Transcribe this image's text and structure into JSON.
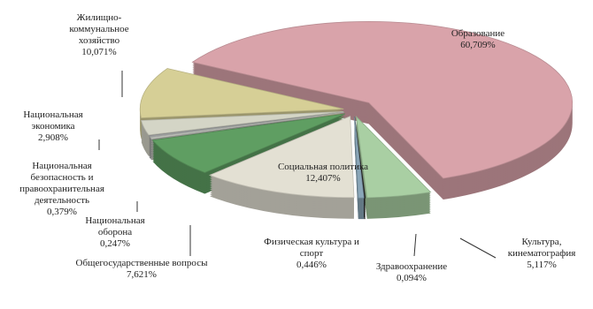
{
  "chart_data": {
    "type": "pie",
    "categories": [
      "Образование",
      "Культура, кинематография",
      "Здравоохранение",
      "Физическая культура и спорт",
      "Социальная политика",
      "Общегосударственные вопросы",
      "Национальная оборона",
      "Национальная безопасность и правоохранительная деятельность",
      "Национальная экономика",
      "Жилищно-коммунальное хозяйство"
    ],
    "values": [
      60.709,
      5.117,
      0.094,
      0.446,
      12.407,
      7.621,
      0.247,
      0.379,
      2.908,
      10.071
    ],
    "value_labels": [
      "60,709%",
      "5,117%",
      "0,094%",
      "0,446%",
      "12,407%",
      "7,621%",
      "0,247%",
      "0,379%",
      "2,908%",
      "10,071%"
    ],
    "colors": [
      "#d9a3aa",
      "#a9cfa3",
      "#2a2a2a",
      "#8aa6b8",
      "#e3e0d3",
      "#5f9e62",
      "#c9cbc4",
      "#9ea0a0",
      "#d4d5c6",
      "#d6cf96"
    ]
  }
}
